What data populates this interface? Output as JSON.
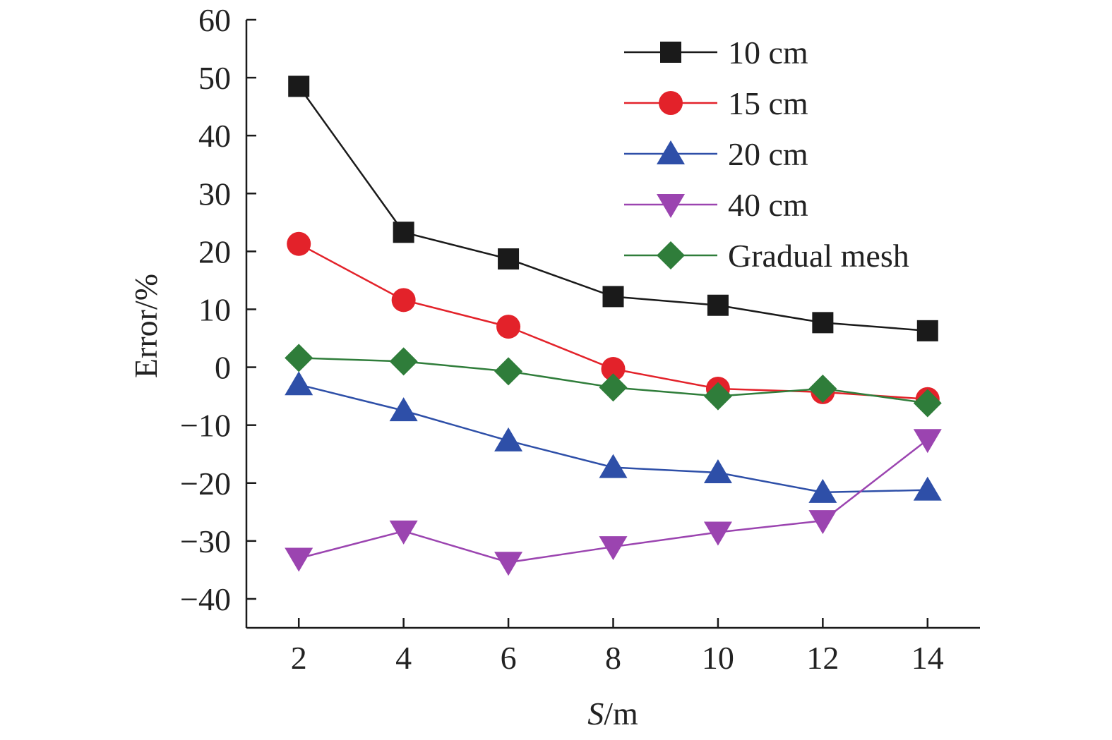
{
  "chart_data": {
    "type": "line",
    "title": "",
    "xlabel": "S/m",
    "xlabel_italic_part": "S",
    "xlabel_rest": "/m",
    "ylabel": "Error/%",
    "x": [
      2,
      4,
      6,
      8,
      10,
      12,
      14
    ],
    "xlim": [
      1,
      15
    ],
    "ylim": [
      -45,
      60
    ],
    "xticks": [
      2,
      4,
      6,
      8,
      10,
      12,
      14
    ],
    "yticks": [
      60,
      50,
      40,
      30,
      20,
      10,
      0,
      -10,
      -20,
      -30,
      -40
    ],
    "ytick_labels": [
      "60",
      "50",
      "40",
      "30",
      "20",
      "10",
      "0",
      "−10",
      "−20",
      "−30",
      "−40"
    ],
    "legend_position": "top-right",
    "series": [
      {
        "name": "10 cm",
        "color": "#1a1a1a",
        "marker": "square",
        "values": [
          48.5,
          23.3,
          18.7,
          12.2,
          10.7,
          7.7,
          6.3
        ]
      },
      {
        "name": "15 cm",
        "color": "#e3222a",
        "marker": "circle",
        "values": [
          21.3,
          11.6,
          7.0,
          -0.3,
          -3.7,
          -4.3,
          -5.5
        ]
      },
      {
        "name": "20 cm",
        "color": "#2e4fa8",
        "marker": "triangle-up",
        "values": [
          -3.0,
          -7.5,
          -12.7,
          -17.3,
          -18.2,
          -21.6,
          -21.2
        ]
      },
      {
        "name": "40 cm",
        "color": "#9b44b0",
        "marker": "triangle-down",
        "values": [
          -33.0,
          -28.3,
          -33.7,
          -31.0,
          -28.5,
          -26.5,
          -12.5
        ]
      },
      {
        "name": "Gradual mesh",
        "color": "#2f7d3a",
        "marker": "diamond",
        "values": [
          1.6,
          1.0,
          -0.7,
          -3.5,
          -5.0,
          -3.7,
          -6.2
        ]
      }
    ]
  }
}
